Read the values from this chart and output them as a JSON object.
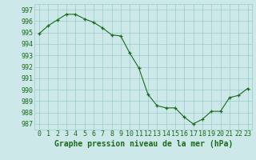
{
  "x": [
    0,
    1,
    2,
    3,
    4,
    5,
    6,
    7,
    8,
    9,
    10,
    11,
    12,
    13,
    14,
    15,
    16,
    17,
    18,
    19,
    20,
    21,
    22,
    23
  ],
  "y": [
    994.9,
    995.6,
    996.1,
    996.6,
    996.6,
    996.2,
    995.9,
    995.4,
    994.8,
    994.7,
    993.2,
    991.9,
    989.6,
    988.6,
    988.4,
    988.4,
    987.6,
    987.0,
    987.4,
    988.1,
    988.1,
    989.3,
    989.5,
    990.1
  ],
  "line_color": "#1a6b1a",
  "marker_color": "#1a6b1a",
  "bg_color": "#cce8e8",
  "grid_color": "#99cccc",
  "xlabel": "Graphe pression niveau de la mer (hPa)",
  "ylabel_ticks": [
    987,
    988,
    989,
    990,
    991,
    992,
    993,
    994,
    995,
    996,
    997
  ],
  "ylim": [
    986.5,
    997.5
  ],
  "xlim": [
    -0.5,
    23.5
  ],
  "font_family": "monospace",
  "tick_fontsize": 6,
  "xlabel_fontsize": 7
}
